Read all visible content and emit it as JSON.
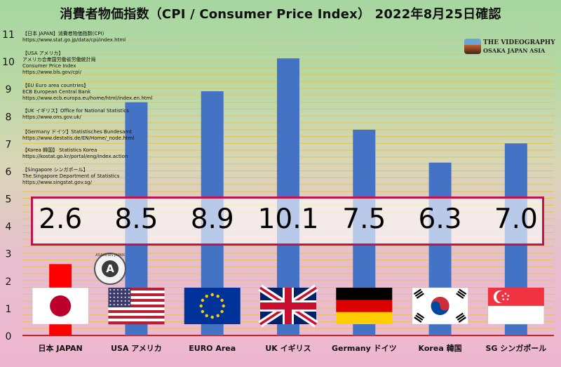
{
  "title": "消費者物価指数（CPI / Consumer Price Index） 2022年8月25日確認",
  "logo": {
    "line1": "THE VIDEOGRAPHY",
    "line2": "OSAKA JAPAN ASIA"
  },
  "stamp": {
    "text": "ASAHEWS JAPAN",
    "letter": "A"
  },
  "sources": [
    [
      "【日本 JAPAN】消費者物価指数(CPI)",
      "https://www.stat.go.jp/data/cpi/index.html"
    ],
    [
      "【USA アメリカ】",
      "アメリカ合衆国労働省労働統計局",
      "Consumer Price Index",
      "https://www.bls.gov/cpi/"
    ],
    [
      "【EU Euro area countries】",
      "ECB European Central Bank",
      "https://www.ecb.europa.eu/home/html/index.en.html"
    ],
    [
      "【UK イギリス】Office for National Statistics",
      "https://www.ons.gov.uk/"
    ],
    [
      "【Germany ドイツ】Statistisches Bundesamt",
      "https://www.destatis.de/EN/Home/_node.html"
    ],
    [
      "【Korea 韓国】 Statistics Korea",
      "https://kostat.go.kr/portal/eng/index.action"
    ],
    [
      "【Singapore シンガポール】",
      "The Singapore Department of Statistics",
      "https://www.singstat.gov.sg/"
    ]
  ],
  "chart_data": {
    "type": "bar",
    "title": "消費者物価指数（CPI / Consumer Price Index） 2022年8月25日確認",
    "categories": [
      "日本 JAPAN",
      "USA アメリカ",
      "EURO Area",
      "UK イギリス",
      "Germany ドイツ",
      "Korea 韓国",
      "SG シンガポール"
    ],
    "values": [
      2.6,
      8.5,
      8.9,
      10.1,
      7.5,
      6.3,
      7.0
    ],
    "value_labels": [
      "2.6",
      "8.5",
      "8.9",
      "10.1",
      "7.5",
      "6.3",
      "7.0"
    ],
    "colors": [
      "#ff0000",
      "#4472c4",
      "#4472c4",
      "#4472c4",
      "#4472c4",
      "#4472c4",
      "#4472c4"
    ],
    "ylim": [
      0,
      11
    ],
    "yticks": [
      0,
      1,
      2,
      3,
      4,
      5,
      6,
      7,
      8,
      9,
      10,
      11
    ],
    "ytick_labels": [
      "0",
      "1",
      "2",
      "3",
      "4",
      "5",
      "6",
      "7",
      "8",
      "9",
      "10",
      "11"
    ],
    "xlabel": "",
    "ylabel": "",
    "grid": true,
    "flags": [
      "japan-flag",
      "usa-flag",
      "eu-flag",
      "uk-flag",
      "germany-flag",
      "korea-flag",
      "singapore-flag"
    ]
  }
}
